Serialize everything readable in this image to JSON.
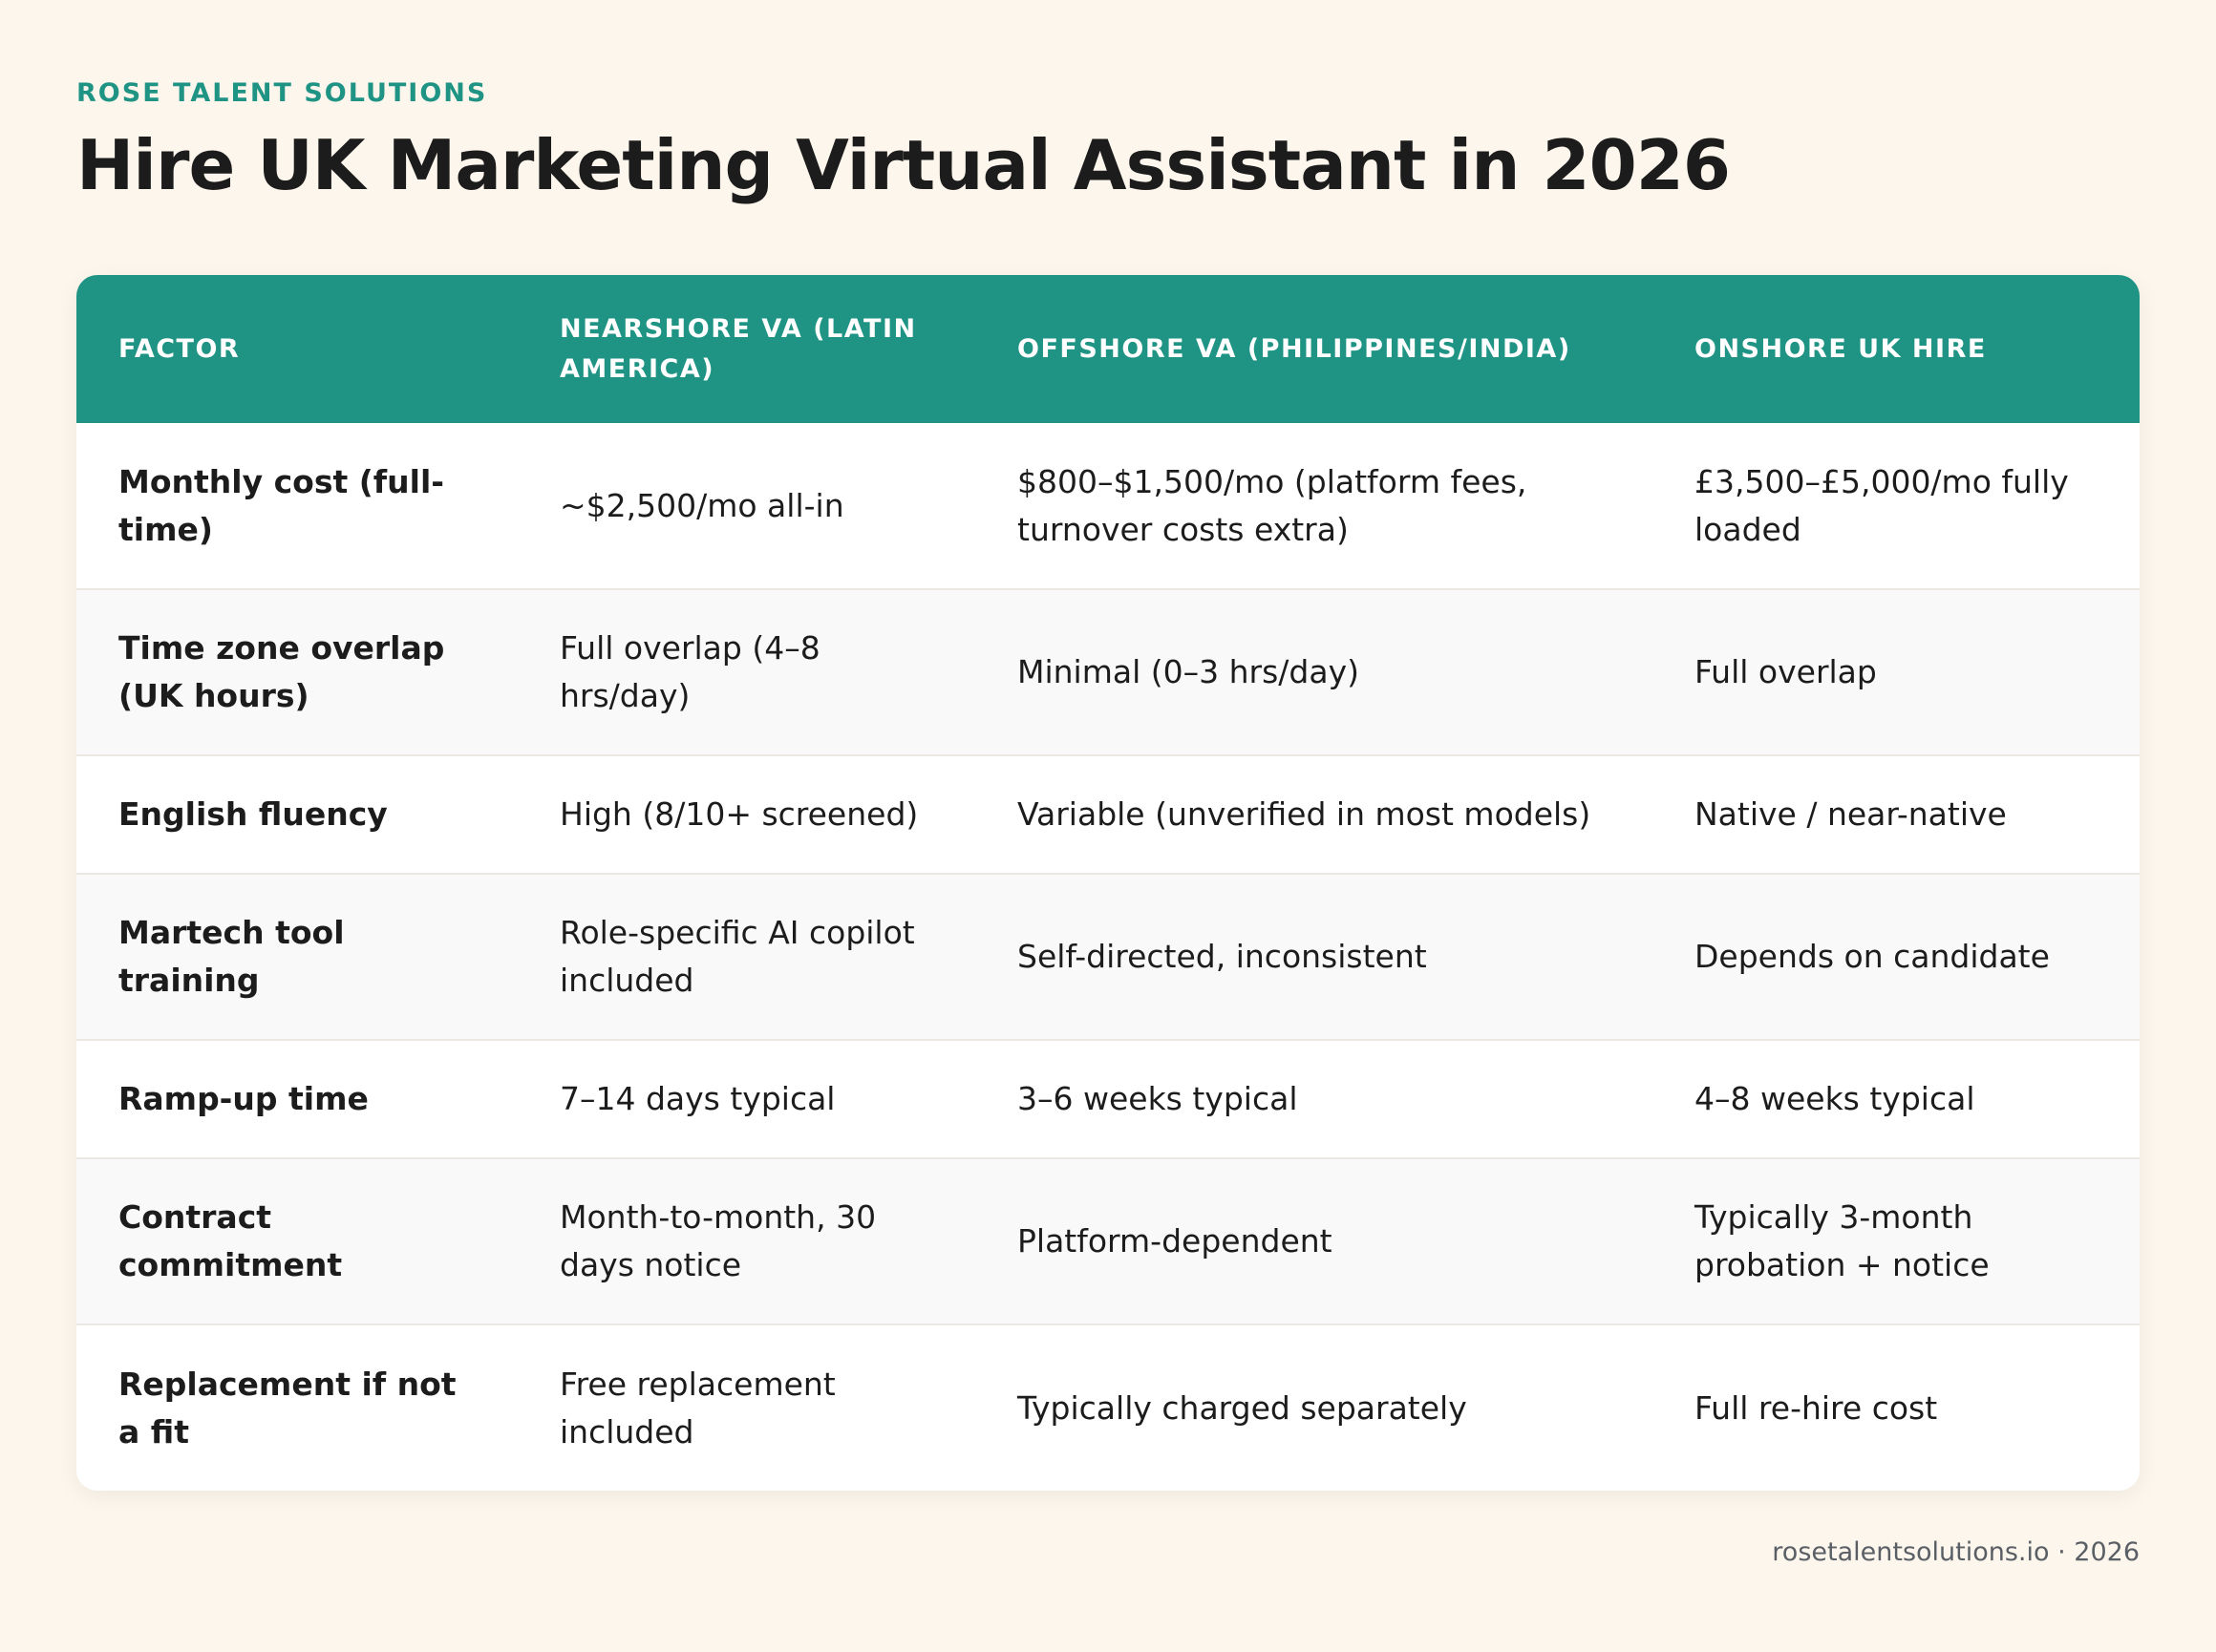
{
  "brand": "ROSE TALENT SOLUTIONS",
  "title": "Hire UK Marketing Virtual Assistant in 2026",
  "colors": {
    "accent": "#1f9484",
    "background": "#fdf6ec",
    "text": "#1c1c1c"
  },
  "table": {
    "headers": [
      "FACTOR",
      "NEARSHORE VA (LATIN AMERICA)",
      "OFFSHORE VA (PHILIPPINES/INDIA)",
      "ONSHORE UK HIRE"
    ],
    "rows": [
      [
        "Monthly cost (full-time)",
        "~$2,500/mo all-in",
        "$800–$1,500/mo (platform fees, turnover costs extra)",
        "£3,500–£5,000/mo fully loaded"
      ],
      [
        "Time zone overlap (UK hours)",
        "Full overlap (4–8 hrs/day)",
        "Minimal (0–3 hrs/day)",
        "Full overlap"
      ],
      [
        "English fluency",
        "High (8/10+ screened)",
        "Variable (unverified in most models)",
        "Native / near-native"
      ],
      [
        "Martech tool training",
        "Role-specific AI copilot included",
        "Self-directed, inconsistent",
        "Depends on candidate"
      ],
      [
        "Ramp-up time",
        "7–14 days typical",
        "3–6 weeks typical",
        "4–8 weeks typical"
      ],
      [
        "Contract commitment",
        "Month-to-month, 30 days notice",
        "Platform-dependent",
        "Typically 3-month probation + notice"
      ],
      [
        "Replacement if not a fit",
        "Free replacement included",
        "Typically charged separately",
        "Full re-hire cost"
      ]
    ]
  },
  "footer": "rosetalentsolutions.io · 2026"
}
